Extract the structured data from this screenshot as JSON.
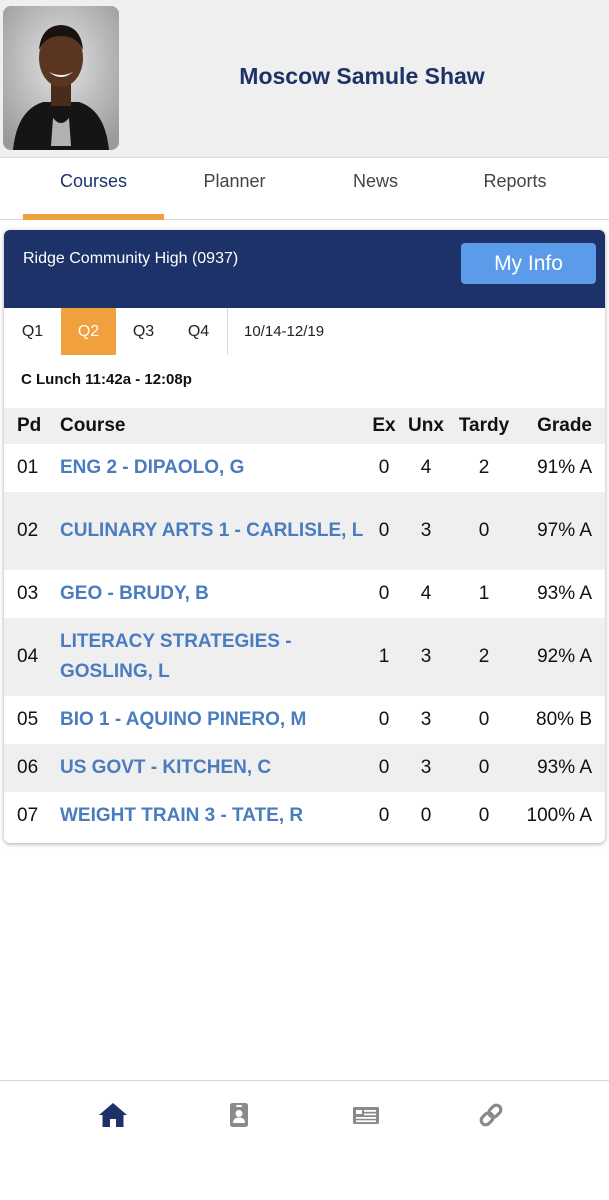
{
  "student": {
    "name": "Moscow Samule Shaw"
  },
  "tabs": [
    {
      "label": "Courses",
      "active": true
    },
    {
      "label": "Planner",
      "active": false
    },
    {
      "label": "News",
      "active": false
    },
    {
      "label": "Reports",
      "active": false
    }
  ],
  "card": {
    "school": "Ridge Community High (0937)",
    "my_info_label": "My Info",
    "quarters": [
      "Q1",
      "Q2",
      "Q3",
      "Q4"
    ],
    "active_quarter": "Q2",
    "date_range": "10/14-12/19",
    "lunch": "C Lunch 11:42a - 12:08p"
  },
  "table": {
    "headers": {
      "pd": "Pd",
      "course": "Course",
      "ex": "Ex",
      "unx": "Unx",
      "tardy": "Tardy",
      "grade": "Grade"
    },
    "rows": [
      {
        "pd": "01",
        "course": "ENG 2 - DIPAOLO, G",
        "ex": "0",
        "unx": "4",
        "tardy": "2",
        "grade": "91% A"
      },
      {
        "pd": "02",
        "course": "CULINARY ARTS 1 - CARLISLE, L",
        "ex": "0",
        "unx": "3",
        "tardy": "0",
        "grade": "97% A"
      },
      {
        "pd": "03",
        "course": "GEO - BRUDY, B",
        "ex": "0",
        "unx": "4",
        "tardy": "1",
        "grade": "93% A"
      },
      {
        "pd": "04",
        "course": "LITERACY STRATEGIES - GOSLING, L",
        "ex": "1",
        "unx": "3",
        "tardy": "2",
        "grade": "92% A"
      },
      {
        "pd": "05",
        "course": "BIO 1 - AQUINO PINERO, M",
        "ex": "0",
        "unx": "3",
        "tardy": "0",
        "grade": "80% B"
      },
      {
        "pd": "06",
        "course": "US GOVT - KITCHEN, C",
        "ex": "0",
        "unx": "3",
        "tardy": "0",
        "grade": "93% A"
      },
      {
        "pd": "07",
        "course": "WEIGHT TRAIN 3 - TATE, R",
        "ex": "0",
        "unx": "0",
        "tardy": "0",
        "grade": "100% A"
      }
    ]
  },
  "bottom_nav": [
    "home-icon",
    "id-badge-icon",
    "newspaper-icon",
    "link-icon"
  ],
  "colors": {
    "navy": "#1d3268",
    "accent": "#f0a03c",
    "link": "#4a7cc0",
    "button": "#5b9bea"
  }
}
